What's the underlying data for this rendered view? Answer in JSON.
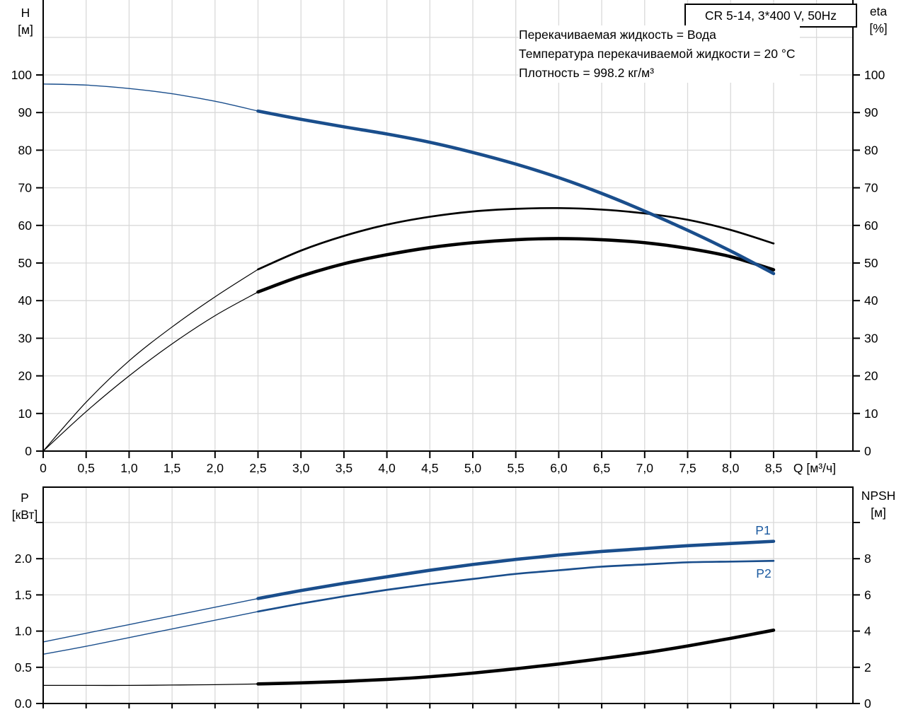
{
  "title_box": {
    "label": "CR 5-14, 3*400 V, 50Hz"
  },
  "conditions": {
    "line1": "Перекачиваемая жидкость = Вода",
    "line2": "Температура перекачиваемой жидкости = 20 °C",
    "line3": "Плотность = 998.2 кг/м³"
  },
  "colors": {
    "curve_blue": "#1A4E8C",
    "curve_black": "#000000",
    "curve_label_blue": "#1B5AA0",
    "grid": "#D9D9D9",
    "axis": "#000000",
    "background": "#FFFFFF"
  },
  "top_chart": {
    "left_axis_title_line1": "H",
    "left_axis_title_line2": "[м]",
    "right_axis_title_line1": "eta",
    "right_axis_title_line2": "[%]",
    "x_axis_unit": "Q [м³/ч]",
    "x_tick_labels": [
      "0",
      "0,5",
      "1,0",
      "1,5",
      "2,0",
      "2,5",
      "3,0",
      "3,5",
      "4,0",
      "4,5",
      "5,0",
      "5,5",
      "6,0",
      "6,5",
      "7,0",
      "7,5",
      "8,0",
      "8,5"
    ],
    "left_tick_labels": [
      "0",
      "10",
      "20",
      "30",
      "40",
      "50",
      "60",
      "70",
      "80",
      "90",
      "100"
    ],
    "right_tick_labels": [
      "0",
      "10",
      "20",
      "30",
      "40",
      "50",
      "60",
      "70",
      "80",
      "90",
      "100"
    ]
  },
  "bottom_chart": {
    "left_axis_title_line1": "P",
    "left_axis_title_line2": "[кВт]",
    "right_axis_title_line1": "NPSH",
    "right_axis_title_line2": "[м]",
    "left_tick_labels": [
      "0.0",
      "0.5",
      "1.0",
      "1.5",
      "2.0"
    ],
    "right_tick_labels": [
      "0",
      "2",
      "4",
      "6",
      "8"
    ],
    "p1_label": "P1",
    "p2_label": "P2"
  },
  "chart_data": [
    {
      "type": "line",
      "title": "CR 5-14, 3*400 V, 50Hz",
      "xlabel": "Q [м³/ч]",
      "ylabel_left": "H [м]",
      "ylabel_right": "eta [%]",
      "xlim": [
        0,
        9.42
      ],
      "ylim_left": [
        0,
        120
      ],
      "ylim_right": [
        0,
        120
      ],
      "grid": true,
      "x_grid_step": 0.5,
      "y_grid_step_left": 10,
      "annotations": [
        "Перекачиваемая жидкость = Вода",
        "Температура перекачиваемой жидкости = 20 °C",
        "Плотность = 998.2 кг/м³"
      ],
      "x": [
        0,
        0.5,
        1.0,
        1.5,
        2.0,
        2.5,
        3.0,
        3.5,
        4.0,
        4.5,
        5.0,
        5.5,
        6.0,
        6.5,
        7.0,
        7.5,
        8.0,
        8.5
      ],
      "series": [
        {
          "name": "eta-pump",
          "axis": "right",
          "color": "black",
          "thick_from_x": 2.5,
          "thin_width": 1.2,
          "thick_width": 2.7,
          "values": [
            0,
            13,
            24,
            33,
            41,
            48.3,
            53.3,
            57.2,
            60.2,
            62.3,
            63.7,
            64.4,
            64.6,
            64.2,
            63.2,
            61.5,
            58.8,
            55.2
          ]
        },
        {
          "name": "eta-total",
          "axis": "right",
          "color": "black",
          "thick_from_x": 2.5,
          "thin_width": 1.2,
          "thick_width": 4.6,
          "values": [
            0,
            10.5,
            20,
            28.5,
            36,
            42.3,
            46.5,
            49.8,
            52.2,
            54.1,
            55.4,
            56.2,
            56.5,
            56.2,
            55.4,
            53.9,
            51.7,
            48.2
          ]
        },
        {
          "name": "H",
          "axis": "left",
          "color": "blue",
          "thick_from_x": 2.5,
          "thin_width": 1.4,
          "thick_width": 4.6,
          "values": [
            97.6,
            97.3,
            96.4,
            95.0,
            93.0,
            90.4,
            88.2,
            86.2,
            84.3,
            82.1,
            79.4,
            76.3,
            72.7,
            68.5,
            63.8,
            58.7,
            53.2,
            47.2
          ]
        }
      ]
    },
    {
      "type": "line",
      "title": "",
      "xlabel": "",
      "ylabel_left": "P [кВт]",
      "ylabel_right": "NPSH [м]",
      "xlim": [
        0,
        9.42
      ],
      "ylim_left": [
        0,
        3
      ],
      "ylim_right": [
        0,
        12
      ],
      "grid": true,
      "x_grid_step": 0.5,
      "y_grid_step_left": 0.5,
      "x": [
        0,
        0.5,
        1.0,
        1.5,
        2.0,
        2.5,
        3.0,
        3.5,
        4.0,
        4.5,
        5.0,
        5.5,
        6.0,
        6.5,
        7.0,
        7.5,
        8.0,
        8.5
      ],
      "series": [
        {
          "name": "NPSH",
          "axis": "right",
          "color": "black",
          "thick_from_x": 2.5,
          "thin_width": 1.3,
          "thick_width": 4.6,
          "values": [
            1.0,
            1.0,
            1.0,
            1.02,
            1.04,
            1.08,
            1.14,
            1.22,
            1.33,
            1.48,
            1.68,
            1.92,
            2.18,
            2.48,
            2.8,
            3.18,
            3.6,
            4.05
          ]
        },
        {
          "name": "P2",
          "axis": "left",
          "color": "blue",
          "thick_from_x": 2.5,
          "thin_width": 1.4,
          "thick_width": 2.7,
          "label": "P2",
          "values": [
            0.68,
            0.79,
            0.91,
            1.03,
            1.15,
            1.27,
            1.38,
            1.48,
            1.57,
            1.65,
            1.72,
            1.79,
            1.84,
            1.89,
            1.92,
            1.95,
            1.96,
            1.97
          ]
        },
        {
          "name": "P1",
          "axis": "left",
          "color": "blue",
          "thick_from_x": 2.5,
          "thin_width": 1.4,
          "thick_width": 4.6,
          "label": "P1",
          "values": [
            0.85,
            0.97,
            1.09,
            1.21,
            1.33,
            1.45,
            1.56,
            1.66,
            1.75,
            1.84,
            1.92,
            1.99,
            2.05,
            2.1,
            2.14,
            2.18,
            2.21,
            2.24
          ]
        }
      ]
    }
  ]
}
